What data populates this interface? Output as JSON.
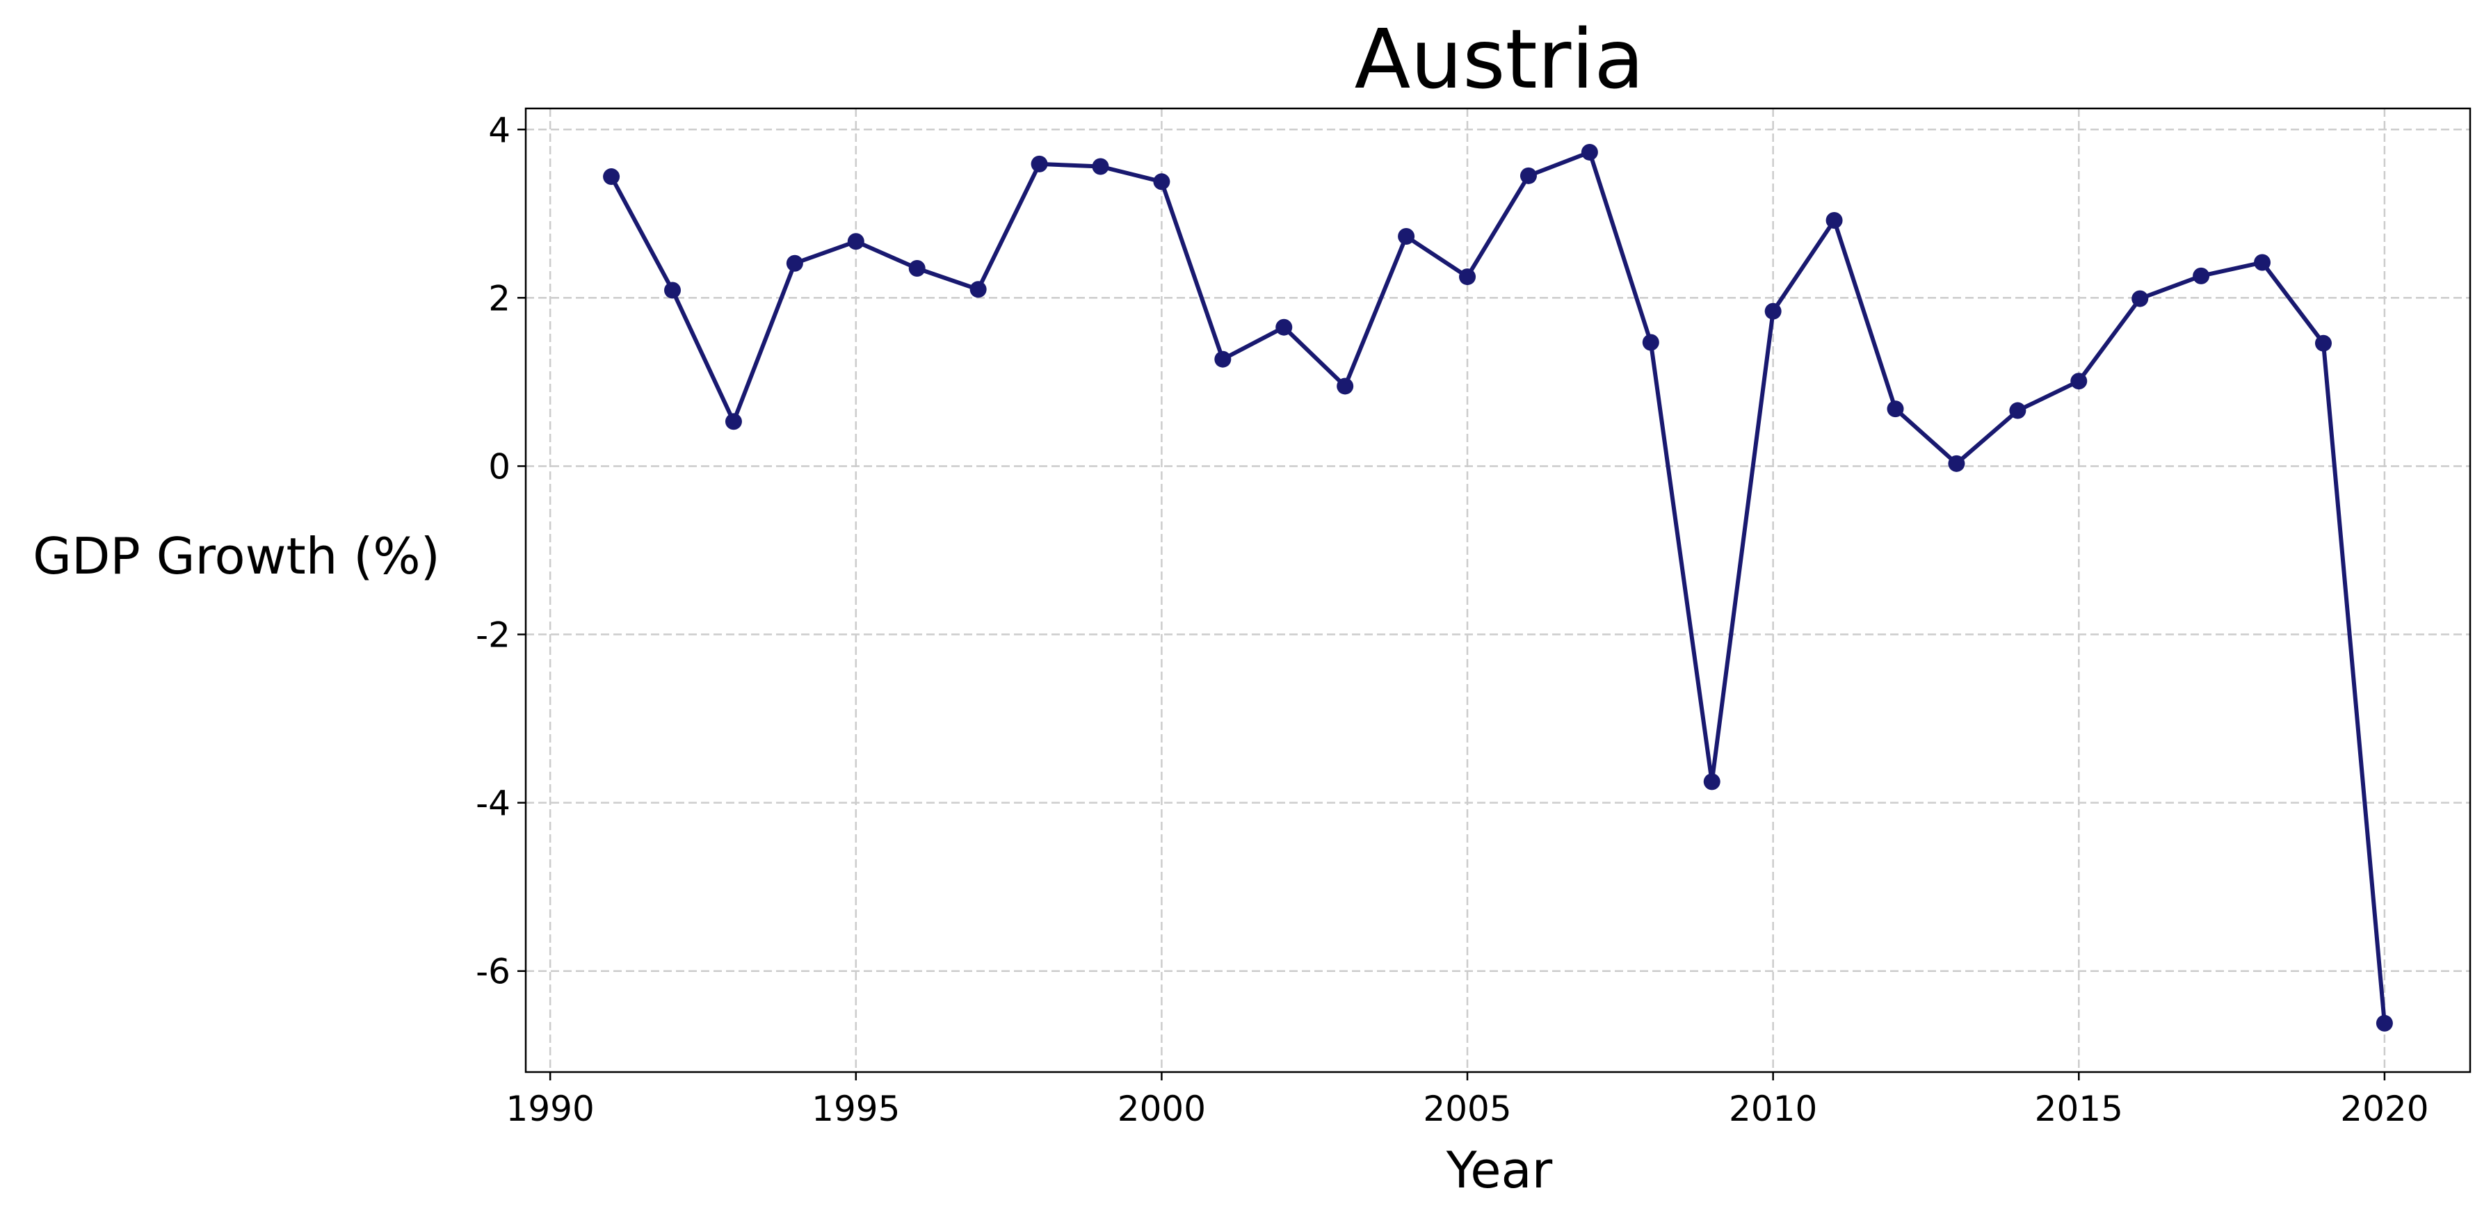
{
  "chart_data": {
    "type": "line",
    "title": "Austria",
    "xlabel": "Year",
    "ylabel": "GDP Growth (%)",
    "xlim": [
      1989.6,
      2021.4
    ],
    "ylim": [
      -7.2,
      4.25
    ],
    "xticks": [
      1990,
      1995,
      2000,
      2005,
      2010,
      2015,
      2020
    ],
    "yticks": [
      -6,
      -4,
      -2,
      0,
      2,
      4
    ],
    "grid": true,
    "grid_style": "dashed",
    "line_color": "#191970",
    "marker": "circle",
    "series": [
      {
        "x": [
          1991,
          1992,
          1993,
          1994,
          1995,
          1996,
          1997,
          1998,
          1999,
          2000,
          2001,
          2002,
          2003,
          2004,
          2005,
          2006,
          2007,
          2008,
          2009,
          2010,
          2011,
          2012,
          2013,
          2014,
          2015,
          2016,
          2017,
          2018,
          2019,
          2020
        ],
        "y": [
          3.44,
          2.09,
          0.53,
          2.41,
          2.67,
          2.35,
          2.1,
          3.59,
          3.56,
          3.38,
          1.27,
          1.65,
          0.95,
          2.73,
          2.25,
          3.45,
          3.73,
          1.47,
          -3.75,
          1.84,
          2.92,
          0.68,
          0.03,
          0.66,
          1.01,
          1.99,
          2.26,
          2.42,
          1.46,
          -6.62
        ]
      }
    ]
  }
}
